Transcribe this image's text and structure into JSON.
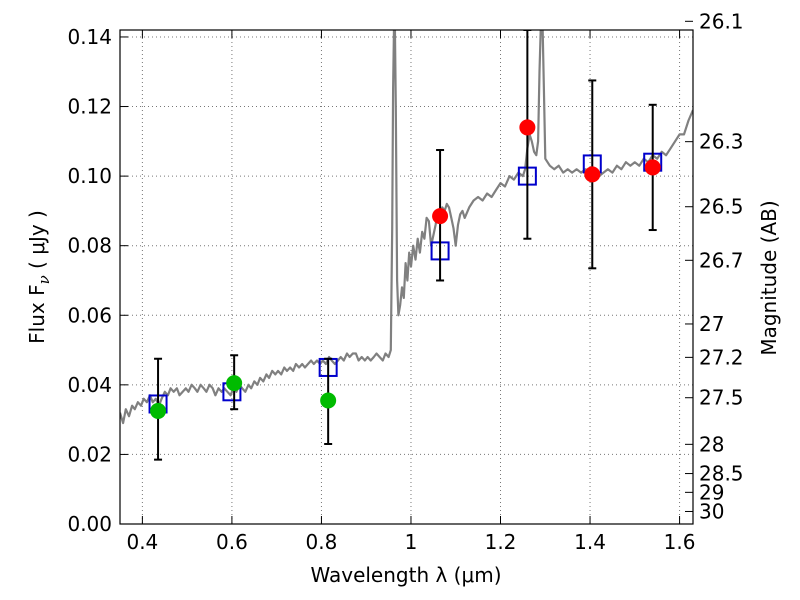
{
  "chart_data": {
    "type": "scatter",
    "xlabel": "Wavelength  λ (μm)",
    "ylabel": "Flux  F",
    "ylabel_sub": "ν",
    "ylabel_unit": " ( μJy )",
    "y2label": "Magnitude (AB)",
    "xlim": [
      0.35,
      1.63
    ],
    "ylim": [
      0.0,
      0.142
    ],
    "grid": true,
    "x_ticks": [
      {
        "value": 0.4,
        "label": "0.4"
      },
      {
        "value": 0.6,
        "label": "0.6"
      },
      {
        "value": 0.8,
        "label": "0.8"
      },
      {
        "value": 1.0,
        "label": "1"
      },
      {
        "value": 1.2,
        "label": "1.2"
      },
      {
        "value": 1.4,
        "label": "1.4"
      },
      {
        "value": 1.6,
        "label": "1.6"
      }
    ],
    "y_ticks": [
      {
        "value": 0.0,
        "label": "0.00"
      },
      {
        "value": 0.02,
        "label": "0.02"
      },
      {
        "value": 0.04,
        "label": "0.04"
      },
      {
        "value": 0.06,
        "label": "0.06"
      },
      {
        "value": 0.08,
        "label": "0.08"
      },
      {
        "value": 0.1,
        "label": "0.10"
      },
      {
        "value": 0.12,
        "label": "0.12"
      },
      {
        "value": 0.14,
        "label": "0.14"
      }
    ],
    "mag_ticks": [
      {
        "flux": 0.1445,
        "label": "26.1"
      },
      {
        "flux": 0.1099,
        "label": "26.3"
      },
      {
        "flux": 0.0912,
        "label": "26.5"
      },
      {
        "flux": 0.0758,
        "label": "26.7"
      },
      {
        "flux": 0.0575,
        "label": "27"
      },
      {
        "flux": 0.0479,
        "label": "27.2"
      },
      {
        "flux": 0.0363,
        "label": "27.5"
      },
      {
        "flux": 0.0229,
        "label": "28"
      },
      {
        "flux": 0.0145,
        "label": "28.5"
      },
      {
        "flux": 0.0091,
        "label": "29"
      },
      {
        "flux": 0.0036,
        "label": "30"
      }
    ],
    "colors": {
      "spectrum": "#808080",
      "model_box": "#0000cc",
      "optical_point": "#00bb00",
      "nir_point": "#ff0000",
      "errorbar": "#000000",
      "grid": "#777777"
    },
    "series": [
      {
        "name": "model spectrum",
        "kind": "line",
        "points": [
          [
            0.35,
            0.032
          ],
          [
            0.357,
            0.029
          ],
          [
            0.363,
            0.033
          ],
          [
            0.37,
            0.031
          ],
          [
            0.377,
            0.034
          ],
          [
            0.383,
            0.033
          ],
          [
            0.39,
            0.035
          ],
          [
            0.397,
            0.034
          ],
          [
            0.403,
            0.036
          ],
          [
            0.41,
            0.035
          ],
          [
            0.417,
            0.037
          ],
          [
            0.423,
            0.035
          ],
          [
            0.43,
            0.036
          ],
          [
            0.437,
            0.034
          ],
          [
            0.443,
            0.036
          ],
          [
            0.45,
            0.038
          ],
          [
            0.457,
            0.037
          ],
          [
            0.463,
            0.039
          ],
          [
            0.47,
            0.038
          ],
          [
            0.477,
            0.039
          ],
          [
            0.483,
            0.037
          ],
          [
            0.49,
            0.038
          ],
          [
            0.497,
            0.039
          ],
          [
            0.503,
            0.038
          ],
          [
            0.51,
            0.04
          ],
          [
            0.517,
            0.039
          ],
          [
            0.523,
            0.038
          ],
          [
            0.53,
            0.04
          ],
          [
            0.537,
            0.039
          ],
          [
            0.543,
            0.038
          ],
          [
            0.55,
            0.04
          ],
          [
            0.557,
            0.039
          ],
          [
            0.563,
            0.037
          ],
          [
            0.57,
            0.039
          ],
          [
            0.577,
            0.038
          ],
          [
            0.583,
            0.039
          ],
          [
            0.59,
            0.038
          ],
          [
            0.597,
            0.037
          ],
          [
            0.603,
            0.039
          ],
          [
            0.61,
            0.038
          ],
          [
            0.617,
            0.04
          ],
          [
            0.623,
            0.039
          ],
          [
            0.63,
            0.038
          ],
          [
            0.637,
            0.04
          ],
          [
            0.643,
            0.039
          ],
          [
            0.65,
            0.041
          ],
          [
            0.657,
            0.04
          ],
          [
            0.663,
            0.042
          ],
          [
            0.67,
            0.041
          ],
          [
            0.677,
            0.043
          ],
          [
            0.683,
            0.042
          ],
          [
            0.69,
            0.044
          ],
          [
            0.697,
            0.043
          ],
          [
            0.703,
            0.044
          ],
          [
            0.71,
            0.043
          ],
          [
            0.717,
            0.045
          ],
          [
            0.723,
            0.044
          ],
          [
            0.73,
            0.045
          ],
          [
            0.737,
            0.044
          ],
          [
            0.743,
            0.046
          ],
          [
            0.75,
            0.045
          ],
          [
            0.757,
            0.046
          ],
          [
            0.763,
            0.045
          ],
          [
            0.77,
            0.046
          ],
          [
            0.777,
            0.047
          ],
          [
            0.783,
            0.046
          ],
          [
            0.79,
            0.047
          ],
          [
            0.797,
            0.046
          ],
          [
            0.803,
            0.047
          ],
          [
            0.81,
            0.046
          ],
          [
            0.817,
            0.048
          ],
          [
            0.823,
            0.047
          ],
          [
            0.83,
            0.046
          ],
          [
            0.837,
            0.047
          ],
          [
            0.843,
            0.048
          ],
          [
            0.85,
            0.047
          ],
          [
            0.857,
            0.049
          ],
          [
            0.863,
            0.048
          ],
          [
            0.87,
            0.049
          ],
          [
            0.877,
            0.049
          ],
          [
            0.883,
            0.047
          ],
          [
            0.89,
            0.048
          ],
          [
            0.897,
            0.047
          ],
          [
            0.903,
            0.048
          ],
          [
            0.91,
            0.047
          ],
          [
            0.917,
            0.048
          ],
          [
            0.923,
            0.049
          ],
          [
            0.93,
            0.048
          ],
          [
            0.937,
            0.047
          ],
          [
            0.943,
            0.049
          ],
          [
            0.95,
            0.048
          ],
          [
            0.955,
            0.05
          ],
          [
            0.958,
            0.085
          ],
          [
            0.96,
            0.125
          ],
          [
            0.962,
            0.143
          ],
          [
            0.964,
            0.143
          ],
          [
            0.966,
            0.12
          ],
          [
            0.969,
            0.07
          ],
          [
            0.972,
            0.06
          ],
          [
            0.976,
            0.063
          ],
          [
            0.98,
            0.068
          ],
          [
            0.984,
            0.065
          ],
          [
            0.988,
            0.075
          ],
          [
            0.992,
            0.07
          ],
          [
            0.996,
            0.078
          ],
          [
            1.0,
            0.074
          ],
          [
            1.005,
            0.08
          ],
          [
            1.01,
            0.076
          ],
          [
            1.015,
            0.082
          ],
          [
            1.02,
            0.078
          ],
          [
            1.025,
            0.084
          ],
          [
            1.03,
            0.082
          ],
          [
            1.035,
            0.088
          ],
          [
            1.04,
            0.087
          ],
          [
            1.045,
            0.08
          ],
          [
            1.05,
            0.083
          ],
          [
            1.055,
            0.086
          ],
          [
            1.06,
            0.09
          ],
          [
            1.065,
            0.088
          ],
          [
            1.07,
            0.091
          ],
          [
            1.075,
            0.09
          ],
          [
            1.08,
            0.092
          ],
          [
            1.085,
            0.091
          ],
          [
            1.09,
            0.088
          ],
          [
            1.095,
            0.085
          ],
          [
            1.1,
            0.08
          ],
          [
            1.105,
            0.086
          ],
          [
            1.11,
            0.089
          ],
          [
            1.115,
            0.09
          ],
          [
            1.12,
            0.088
          ],
          [
            1.13,
            0.091
          ],
          [
            1.14,
            0.093
          ],
          [
            1.15,
            0.094
          ],
          [
            1.16,
            0.093
          ],
          [
            1.17,
            0.095
          ],
          [
            1.18,
            0.094
          ],
          [
            1.19,
            0.096
          ],
          [
            1.2,
            0.098
          ],
          [
            1.21,
            0.097
          ],
          [
            1.22,
            0.1
          ],
          [
            1.23,
            0.099
          ],
          [
            1.24,
            0.101
          ],
          [
            1.25,
            0.1
          ],
          [
            1.255,
            0.102
          ],
          [
            1.26,
            0.108
          ],
          [
            1.265,
            0.112
          ],
          [
            1.27,
            0.11
          ],
          [
            1.275,
            0.107
          ],
          [
            1.28,
            0.106
          ],
          [
            1.284,
            0.11
          ],
          [
            1.287,
            0.13
          ],
          [
            1.29,
            0.143
          ],
          [
            1.294,
            0.143
          ],
          [
            1.297,
            0.125
          ],
          [
            1.3,
            0.105
          ],
          [
            1.31,
            0.103
          ],
          [
            1.32,
            0.102
          ],
          [
            1.33,
            0.103
          ],
          [
            1.34,
            0.101
          ],
          [
            1.35,
            0.102
          ],
          [
            1.36,
            0.101
          ],
          [
            1.37,
            0.102
          ],
          [
            1.38,
            0.101
          ],
          [
            1.39,
            0.102
          ],
          [
            1.4,
            0.101
          ],
          [
            1.41,
            0.102
          ],
          [
            1.42,
            0.1
          ],
          [
            1.43,
            0.101
          ],
          [
            1.44,
            0.102
          ],
          [
            1.45,
            0.101
          ],
          [
            1.46,
            0.103
          ],
          [
            1.47,
            0.102
          ],
          [
            1.48,
            0.104
          ],
          [
            1.49,
            0.103
          ],
          [
            1.5,
            0.104
          ],
          [
            1.51,
            0.103
          ],
          [
            1.52,
            0.105
          ],
          [
            1.53,
            0.104
          ],
          [
            1.54,
            0.106
          ],
          [
            1.55,
            0.105
          ],
          [
            1.56,
            0.107
          ],
          [
            1.57,
            0.106
          ],
          [
            1.58,
            0.108
          ],
          [
            1.59,
            0.11
          ],
          [
            1.6,
            0.112
          ],
          [
            1.61,
            0.112
          ],
          [
            1.62,
            0.116
          ],
          [
            1.63,
            0.119
          ]
        ]
      },
      {
        "name": "model photometry",
        "kind": "open-square",
        "x": [
          0.435,
          0.6,
          0.815,
          1.065,
          1.26,
          1.405,
          1.54
        ],
        "y": [
          0.0345,
          0.038,
          0.045,
          0.0785,
          0.1,
          0.1035,
          0.104
        ]
      },
      {
        "name": "optical photometry",
        "kind": "filled-circle",
        "x": [
          0.435,
          0.605,
          0.815
        ],
        "y": [
          0.0325,
          0.0405,
          0.0355
        ],
        "yerr_low": [
          0.0185,
          0.033,
          0.023
        ],
        "yerr_high": [
          0.0475,
          0.0485,
          0.0475
        ]
      },
      {
        "name": "near-IR photometry",
        "kind": "filled-circle",
        "x": [
          1.065,
          1.26,
          1.405,
          1.54
        ],
        "y": [
          0.0885,
          0.114,
          0.1005,
          0.1025
        ],
        "yerr_low": [
          0.07,
          0.082,
          0.0735,
          0.0845
        ],
        "yerr_high": [
          0.1075,
          0.142,
          0.1275,
          0.1205
        ]
      }
    ]
  }
}
